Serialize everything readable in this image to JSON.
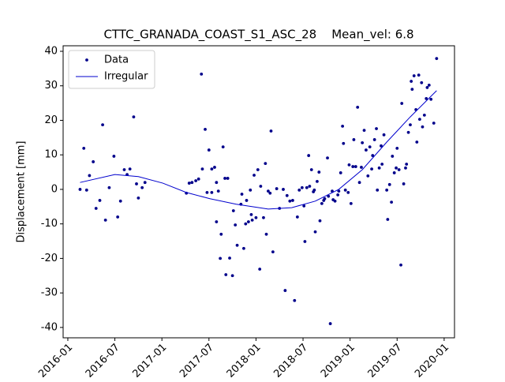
{
  "chart_data": {
    "type": "scatter",
    "title": "CTTC_GRANADA_COAST_S1_ASC_28    Mean_vel: 6.8",
    "y_label": "Displacement [mm]",
    "xlim": [
      2015.95,
      2020.11
    ],
    "ylim": [
      -43,
      41.6
    ],
    "xticks": [
      {
        "value": 2016.0,
        "label": "2016-01"
      },
      {
        "value": 2016.5,
        "label": "2016-07"
      },
      {
        "value": 2017.0,
        "label": "2017-01"
      },
      {
        "value": 2017.5,
        "label": "2017-07"
      },
      {
        "value": 2018.0,
        "label": "2018-01"
      },
      {
        "value": 2018.5,
        "label": "2018-07"
      },
      {
        "value": 2019.0,
        "label": "2019-01"
      },
      {
        "value": 2019.5,
        "label": "2019-07"
      },
      {
        "value": 2020.0,
        "label": "2020-01"
      }
    ],
    "yticks": [
      -40,
      -30,
      -20,
      -10,
      0,
      10,
      20,
      30,
      40
    ],
    "legend": "upper left",
    "grid": false,
    "series": [
      {
        "name": "Data",
        "mode": "markers",
        "color": "#00008b",
        "x": [
          2016.13,
          2016.17,
          2016.2,
          2016.23,
          2016.27,
          2016.3,
          2016.34,
          2016.37,
          2016.4,
          2016.44,
          2016.49,
          2016.53,
          2016.56,
          2016.6,
          2016.63,
          2016.66,
          2016.7,
          2016.73,
          2016.75,
          2016.79,
          2016.82,
          2017.26,
          2017.29,
          2017.32,
          2017.36,
          2017.39,
          2017.42,
          2017.43,
          2017.46,
          2017.48,
          2017.5,
          2017.53,
          2017.53,
          2017.56,
          2017.58,
          2017.58,
          2017.6,
          2017.62,
          2017.63,
          2017.65,
          2017.67,
          2017.68,
          2017.7,
          2017.72,
          2017.75,
          2017.76,
          2017.78,
          2017.8,
          2017.84,
          2017.85,
          2017.87,
          2017.89,
          2017.9,
          2017.92,
          2017.94,
          2017.95,
          2017.96,
          2017.98,
          2018.0,
          2018.02,
          2018.04,
          2018.05,
          2018.08,
          2018.1,
          2018.11,
          2018.13,
          2018.15,
          2018.16,
          2018.18,
          2018.22,
          2018.25,
          2018.29,
          2018.31,
          2018.33,
          2018.36,
          2018.39,
          2018.41,
          2018.44,
          2018.46,
          2018.49,
          2018.51,
          2018.52,
          2018.54,
          2018.56,
          2018.57,
          2018.59,
          2018.61,
          2018.62,
          2018.63,
          2018.65,
          2018.67,
          2018.68,
          2018.7,
          2018.72,
          2018.73,
          2018.76,
          2018.77,
          2018.79,
          2018.81,
          2018.82,
          2018.84,
          2018.87,
          2018.88,
          2018.9,
          2018.92,
          2018.93,
          2018.95,
          2018.98,
          2018.99,
          2019.01,
          2019.03,
          2019.04,
          2019.06,
          2019.08,
          2019.1,
          2019.12,
          2019.13,
          2019.15,
          2019.17,
          2019.19,
          2019.21,
          2019.23,
          2019.24,
          2019.26,
          2019.28,
          2019.29,
          2019.31,
          2019.33,
          2019.34,
          2019.36,
          2019.39,
          2019.4,
          2019.42,
          2019.44,
          2019.45,
          2019.47,
          2019.49,
          2019.5,
          2019.52,
          2019.54,
          2019.55,
          2019.57,
          2019.59,
          2019.6,
          2019.62,
          2019.64,
          2019.65,
          2019.66,
          2019.68,
          2019.7,
          2019.71,
          2019.73,
          2019.74,
          2019.76,
          2019.77,
          2019.79,
          2019.81,
          2019.82,
          2019.84,
          2019.86,
          2019.89,
          2019.92
        ],
        "values": [
          0,
          11.9,
          -0.2,
          4,
          8,
          -5.5,
          -3.2,
          18.7,
          -8.9,
          0.5,
          9.6,
          -8,
          -3.4,
          5.7,
          4.3,
          5.9,
          21,
          1.6,
          -2.5,
          0.5,
          2,
          -1.1,
          1.8,
          2,
          2.5,
          3,
          33.4,
          5.9,
          17.4,
          -0.9,
          11.4,
          5.9,
          -0.9,
          6.4,
          2,
          -9.4,
          -0.5,
          -20,
          -13,
          12.3,
          3.2,
          -24.7,
          3.2,
          -19.9,
          -25,
          -6.2,
          -10.3,
          -16.2,
          -4.3,
          -1.4,
          -17.1,
          -10,
          -3.2,
          -9.4,
          -0.2,
          -7.3,
          -8.9,
          4.1,
          -8.2,
          5.7,
          -23.1,
          0.9,
          -8.2,
          7.5,
          -13,
          -0.5,
          -1.1,
          16.9,
          -18.1,
          0.2,
          -5.5,
          0,
          -29.3,
          -1.8,
          -3.4,
          -3.2,
          -32.2,
          -8,
          -0.2,
          0.5,
          -4.8,
          -15.1,
          0.5,
          9.8,
          0.9,
          5.7,
          -0.7,
          -0.2,
          -12.3,
          2.3,
          5,
          -9.1,
          -4.1,
          -3.2,
          -2.7,
          9.1,
          -2,
          -38.9,
          -0.5,
          -3,
          -3.4,
          -1.6,
          -0.5,
          4.8,
          18.3,
          13.3,
          -0.2,
          -0.9,
          7.1,
          -4.1,
          6.6,
          14.4,
          6.6,
          23.8,
          2,
          6.4,
          13.5,
          17.1,
          11.4,
          3.9,
          12.3,
          5.9,
          9.8,
          14.4,
          17.6,
          -0.2,
          6.2,
          12.6,
          7.3,
          15.8,
          -0.2,
          -8.7,
          1.4,
          -3.7,
          9.6,
          4.8,
          6.2,
          11.9,
          5.7,
          -21.9,
          24.9,
          1.6,
          6.2,
          7.3,
          16.5,
          18.7,
          31.3,
          29,
          32.9,
          23.1,
          13.7,
          33.1,
          20.3,
          30.9,
          18.1,
          21.5,
          26.3,
          29.5,
          30.2,
          26.1,
          19.2,
          37.9
        ]
      },
      {
        "name": "Irregular",
        "mode": "line",
        "color": "#0000cd",
        "x": [
          2016.13,
          2016.5,
          2016.75,
          2017.01,
          2017.26,
          2017.51,
          2017.79,
          2018.13,
          2018.38,
          2018.63,
          2018.88,
          2019.13,
          2019.39,
          2019.64,
          2019.92
        ],
        "values": [
          2,
          4.3,
          3.7,
          1.8,
          -0.9,
          -2.7,
          -4.3,
          -5.7,
          -5.3,
          -3.4,
          0,
          5.7,
          13.7,
          21,
          28.6
        ]
      }
    ]
  }
}
